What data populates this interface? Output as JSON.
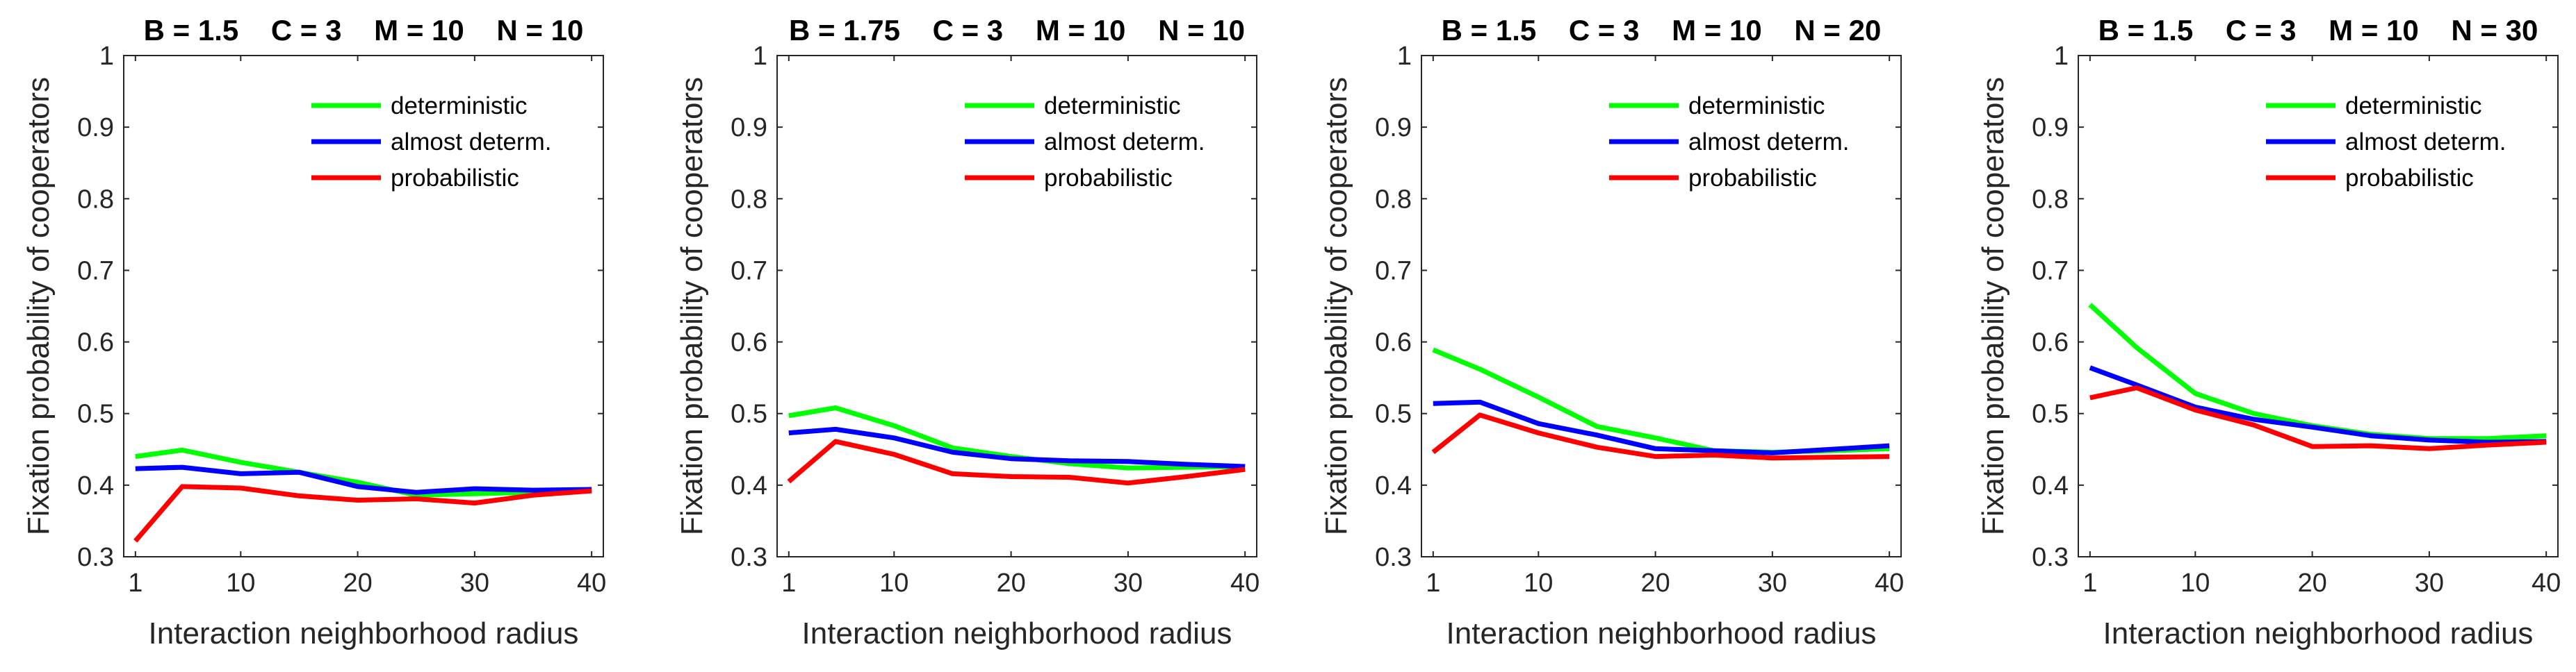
{
  "colors": {
    "deterministic": "#00ff00",
    "almost_determ": "#0000ff",
    "probabilistic": "#ff0000",
    "axis": "#262626"
  },
  "chart_data": [
    {
      "type": "line",
      "title": "B = 1.5    C = 3    M = 10    N = 10",
      "xlabel": "Interaction neighborhood radius",
      "ylabel": "Fixation probability of cooperators",
      "xlim": [
        0,
        41
      ],
      "ylim": [
        0.3,
        1
      ],
      "xticks": [
        1,
        10,
        20,
        30,
        40
      ],
      "xtick_labels": [
        "1",
        "10",
        "20",
        "30",
        "40"
      ],
      "yticks": [
        0.3,
        0.4,
        0.5,
        0.6,
        0.7,
        0.8,
        0.9,
        1
      ],
      "ytick_labels": [
        "0.3",
        "0.4",
        "0.5",
        "0.6",
        "0.7",
        "0.8",
        "0.9",
        "1"
      ],
      "legend_position": "top-right",
      "x": [
        1,
        5,
        10,
        15,
        20,
        25,
        30,
        35,
        40
      ],
      "series": [
        {
          "name": "deterministic",
          "color_key": "deterministic",
          "values": [
            0.44,
            0.449,
            0.432,
            0.418,
            0.404,
            0.386,
            0.388,
            0.39,
            0.393
          ]
        },
        {
          "name": "almost determ.",
          "color_key": "almost_determ",
          "values": [
            0.423,
            0.425,
            0.416,
            0.418,
            0.398,
            0.39,
            0.395,
            0.393,
            0.394
          ]
        },
        {
          "name": "probabilistic",
          "color_key": "probabilistic",
          "values": [
            0.322,
            0.398,
            0.396,
            0.385,
            0.379,
            0.381,
            0.375,
            0.386,
            0.392
          ]
        }
      ]
    },
    {
      "type": "line",
      "title": "B = 1.75    C = 3    M = 10    N = 10",
      "xlabel": "Interaction neighborhood radius",
      "ylabel": "Fixation probability of cooperators",
      "xlim": [
        0,
        41
      ],
      "ylim": [
        0.3,
        1
      ],
      "xticks": [
        1,
        10,
        20,
        30,
        40
      ],
      "xtick_labels": [
        "1",
        "10",
        "20",
        "30",
        "40"
      ],
      "yticks": [
        0.3,
        0.4,
        0.5,
        0.6,
        0.7,
        0.8,
        0.9,
        1
      ],
      "ytick_labels": [
        "0.3",
        "0.4",
        "0.5",
        "0.6",
        "0.7",
        "0.8",
        "0.9",
        "1"
      ],
      "legend_position": "top-right",
      "x": [
        1,
        5,
        10,
        15,
        20,
        25,
        30,
        35,
        40
      ],
      "series": [
        {
          "name": "deterministic",
          "color_key": "deterministic",
          "values": [
            0.497,
            0.508,
            0.483,
            0.452,
            0.44,
            0.43,
            0.424,
            0.425,
            0.426
          ]
        },
        {
          "name": "almost determ.",
          "color_key": "almost_determ",
          "values": [
            0.473,
            0.478,
            0.466,
            0.446,
            0.437,
            0.434,
            0.433,
            0.429,
            0.426
          ]
        },
        {
          "name": "probabilistic",
          "color_key": "probabilistic",
          "values": [
            0.405,
            0.461,
            0.443,
            0.416,
            0.412,
            0.411,
            0.403,
            0.412,
            0.422
          ]
        }
      ]
    },
    {
      "type": "line",
      "title": "B = 1.5    C = 3    M = 10    N = 20",
      "xlabel": "Interaction neighborhood radius",
      "ylabel": "Fixation probability of cooperators",
      "xlim": [
        0,
        41
      ],
      "ylim": [
        0.3,
        1
      ],
      "xticks": [
        1,
        10,
        20,
        30,
        40
      ],
      "xtick_labels": [
        "1",
        "10",
        "20",
        "30",
        "40"
      ],
      "yticks": [
        0.3,
        0.4,
        0.5,
        0.6,
        0.7,
        0.8,
        0.9,
        1
      ],
      "ytick_labels": [
        "0.3",
        "0.4",
        "0.5",
        "0.6",
        "0.7",
        "0.8",
        "0.9",
        "1"
      ],
      "legend_position": "top-right",
      "x": [
        1,
        5,
        10,
        15,
        20,
        25,
        30,
        35,
        40
      ],
      "series": [
        {
          "name": "deterministic",
          "color_key": "deterministic",
          "values": [
            0.589,
            0.562,
            0.523,
            0.482,
            0.466,
            0.448,
            0.446,
            0.448,
            0.451
          ]
        },
        {
          "name": "almost determ.",
          "color_key": "almost_determ",
          "values": [
            0.514,
            0.516,
            0.486,
            0.47,
            0.451,
            0.448,
            0.445,
            0.45,
            0.455
          ]
        },
        {
          "name": "probabilistic",
          "color_key": "probabilistic",
          "values": [
            0.446,
            0.498,
            0.473,
            0.453,
            0.44,
            0.442,
            0.438,
            0.439,
            0.44
          ]
        }
      ]
    },
    {
      "type": "line",
      "title": "B = 1.5    C = 3    M = 10    N = 30",
      "xlabel": "Interaction neighborhood radius",
      "ylabel": "Fixation probability of cooperators",
      "xlim": [
        0,
        41
      ],
      "ylim": [
        0.3,
        1
      ],
      "xticks": [
        1,
        10,
        20,
        30,
        40
      ],
      "xtick_labels": [
        "1",
        "10",
        "20",
        "30",
        "40"
      ],
      "yticks": [
        0.3,
        0.4,
        0.5,
        0.6,
        0.7,
        0.8,
        0.9,
        1
      ],
      "ytick_labels": [
        "0.3",
        "0.4",
        "0.5",
        "0.6",
        "0.7",
        "0.8",
        "0.9",
        "1"
      ],
      "legend_position": "top-right",
      "x": [
        1,
        5,
        10,
        15,
        20,
        25,
        30,
        35,
        40
      ],
      "series": [
        {
          "name": "deterministic",
          "color_key": "deterministic",
          "values": [
            0.652,
            0.592,
            0.528,
            0.5,
            0.483,
            0.471,
            0.465,
            0.465,
            0.469
          ]
        },
        {
          "name": "almost determ.",
          "color_key": "almost_determ",
          "values": [
            0.564,
            0.54,
            0.509,
            0.492,
            0.481,
            0.469,
            0.463,
            0.46,
            0.461
          ]
        },
        {
          "name": "probabilistic",
          "color_key": "probabilistic",
          "values": [
            0.522,
            0.536,
            0.505,
            0.484,
            0.454,
            0.455,
            0.451,
            0.456,
            0.46
          ]
        }
      ]
    }
  ]
}
